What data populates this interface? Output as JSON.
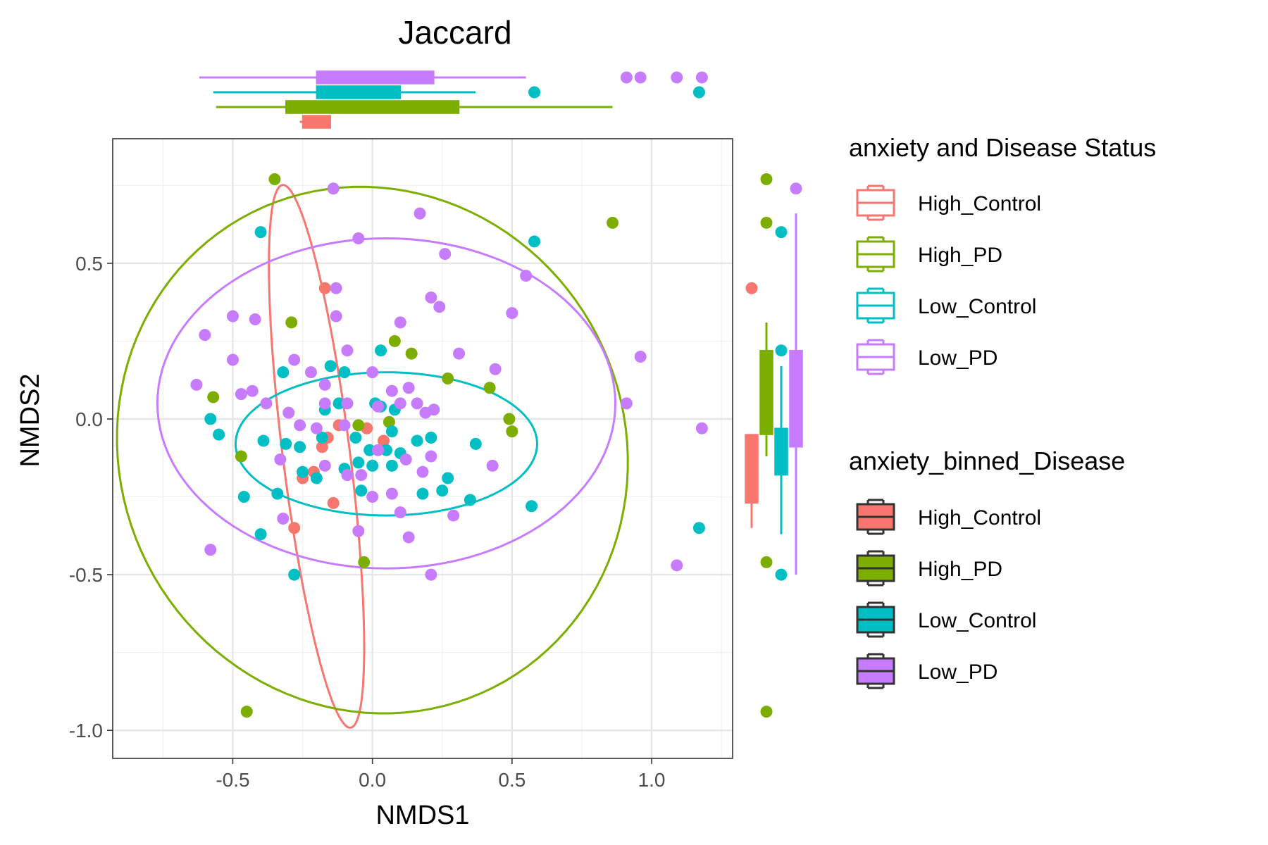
{
  "chart_data": {
    "type": "scatter",
    "title": "Jaccard",
    "xlabel": "NMDS1",
    "ylabel": "NMDS2",
    "xlim": [
      -0.93,
      1.29
    ],
    "ylim": [
      -1.09,
      0.9
    ],
    "x_ticks": [
      -0.5,
      0.0,
      0.5,
      1.0
    ],
    "x_tick_labels": [
      "-0.5",
      "0.0",
      "0.5",
      "1.0"
    ],
    "y_ticks": [
      -1.0,
      -0.5,
      0.0,
      0.5
    ],
    "y_tick_labels": [
      "-1.0",
      "-0.5",
      "0.0",
      "0.5"
    ],
    "grid": true,
    "legend_position": "right",
    "legend_titles": [
      "anxiety and Disease Status",
      "anxiety_binned_Disease"
    ],
    "series": [
      {
        "name": "High_Control",
        "color": "#F8766D",
        "points": [
          [
            -0.17,
            0.42
          ],
          [
            -0.12,
            -0.02
          ],
          [
            -0.16,
            -0.06
          ],
          [
            -0.25,
            -0.19
          ],
          [
            -0.28,
            -0.35
          ],
          [
            -0.14,
            -0.27
          ],
          [
            -0.02,
            -0.03
          ],
          [
            0.04,
            -0.07
          ],
          [
            -0.21,
            -0.17
          ],
          [
            -0.18,
            -0.09
          ]
        ],
        "ellipse": {
          "center": [
            -0.2,
            -0.12
          ],
          "rx": 0.12,
          "ry": 0.88,
          "angle_deg": 8
        },
        "box_x": {
          "min": -0.26,
          "q1": -0.25,
          "median": -0.2,
          "q3": -0.15,
          "max": -0.15
        },
        "box_y": {
          "min": -0.35,
          "q1": -0.27,
          "median": -0.15,
          "q3": -0.05,
          "max": -0.05,
          "outliers": [
            0.42
          ]
        }
      },
      {
        "name": "High_PD",
        "color": "#7CAE00",
        "points": [
          [
            -0.35,
            0.77
          ],
          [
            0.86,
            0.63
          ],
          [
            -0.29,
            0.31
          ],
          [
            0.08,
            0.25
          ],
          [
            0.14,
            0.21
          ],
          [
            -0.57,
            0.07
          ],
          [
            0.27,
            0.13
          ],
          [
            0.42,
            0.1
          ],
          [
            0.49,
            0.0
          ],
          [
            0.5,
            -0.04
          ],
          [
            -0.05,
            -0.02
          ],
          [
            0.06,
            -0.01
          ],
          [
            -0.47,
            -0.12
          ],
          [
            -0.03,
            -0.46
          ],
          [
            -0.45,
            -0.94
          ]
        ],
        "ellipse": {
          "center": [
            0.0,
            -0.1
          ],
          "rx": 0.92,
          "ry": 0.84,
          "angle_deg": -15
        },
        "box_x": {
          "min": -0.56,
          "q1": -0.31,
          "median": -0.02,
          "q3": 0.31,
          "max": 0.86,
          "outliers": []
        },
        "box_y": {
          "min": -0.12,
          "q1": -0.05,
          "median": 0.08,
          "q3": 0.22,
          "max": 0.31,
          "outliers": [
            0.77,
            0.63,
            -0.46,
            -0.94
          ]
        }
      },
      {
        "name": "Low_Control",
        "color": "#00BFC4",
        "points": [
          [
            -0.4,
            0.6
          ],
          [
            -0.32,
            0.15
          ],
          [
            -0.15,
            0.17
          ],
          [
            -0.1,
            0.15
          ],
          [
            0.03,
            0.22
          ],
          [
            -0.17,
            0.03
          ],
          [
            -0.12,
            0.05
          ],
          [
            0.01,
            0.05
          ],
          [
            0.03,
            0.04
          ],
          [
            0.08,
            0.03
          ],
          [
            -0.58,
            0.0
          ],
          [
            -0.55,
            -0.05
          ],
          [
            -0.39,
            -0.07
          ],
          [
            -0.31,
            -0.08
          ],
          [
            -0.26,
            -0.09
          ],
          [
            -0.18,
            -0.06
          ],
          [
            -0.06,
            -0.06
          ],
          [
            -0.01,
            -0.1
          ],
          [
            0.05,
            -0.1
          ],
          [
            0.1,
            -0.11
          ],
          [
            0.16,
            -0.07
          ],
          [
            0.21,
            -0.06
          ],
          [
            0.07,
            -0.04
          ],
          [
            0.37,
            -0.08
          ],
          [
            -0.46,
            -0.25
          ],
          [
            -0.34,
            -0.24
          ],
          [
            -0.4,
            -0.37
          ],
          [
            -0.25,
            -0.17
          ],
          [
            -0.2,
            -0.19
          ],
          [
            -0.1,
            -0.16
          ],
          [
            -0.05,
            -0.14
          ],
          [
            0.0,
            -0.15
          ],
          [
            0.07,
            -0.15
          ],
          [
            -0.04,
            -0.23
          ],
          [
            0.18,
            -0.24
          ],
          [
            0.25,
            -0.23
          ],
          [
            0.27,
            -0.19
          ],
          [
            0.35,
            -0.26
          ],
          [
            0.57,
            -0.28
          ],
          [
            -0.28,
            -0.5
          ],
          [
            1.17,
            -0.35
          ],
          [
            0.58,
            0.57
          ]
        ],
        "ellipse": {
          "center": [
            0.05,
            -0.08
          ],
          "rx": 0.54,
          "ry": 0.23,
          "angle_deg": 0
        },
        "box_x": {
          "min": -0.57,
          "q1": -0.2,
          "median": -0.06,
          "q3": 0.1,
          "max": 0.37,
          "outliers": [
            0.58,
            1.17
          ]
        },
        "box_y": {
          "min": -0.37,
          "q1": -0.18,
          "median": -0.09,
          "q3": -0.03,
          "max": 0.17,
          "outliers": [
            0.6,
            0.22,
            -0.5
          ]
        }
      },
      {
        "name": "Low_PD",
        "color": "#C77CFF",
        "points": [
          [
            -0.14,
            0.74
          ],
          [
            0.17,
            0.66
          ],
          [
            -0.05,
            0.58
          ],
          [
            0.26,
            0.53
          ],
          [
            0.55,
            0.46
          ],
          [
            -0.13,
            0.42
          ],
          [
            0.21,
            0.39
          ],
          [
            0.24,
            0.36
          ],
          [
            0.5,
            0.34
          ],
          [
            -0.5,
            0.33
          ],
          [
            -0.42,
            0.32
          ],
          [
            -0.13,
            0.33
          ],
          [
            0.1,
            0.31
          ],
          [
            -0.6,
            0.27
          ],
          [
            -0.5,
            0.19
          ],
          [
            -0.09,
            0.22
          ],
          [
            -0.28,
            0.19
          ],
          [
            0.31,
            0.21
          ],
          [
            0.44,
            0.16
          ],
          [
            0.96,
            0.2
          ],
          [
            -0.63,
            0.11
          ],
          [
            -0.47,
            0.08
          ],
          [
            -0.43,
            0.09
          ],
          [
            -0.22,
            0.15
          ],
          [
            0.0,
            0.15
          ],
          [
            -0.17,
            0.11
          ],
          [
            0.07,
            0.09
          ],
          [
            0.13,
            0.1
          ],
          [
            -0.17,
            0.05
          ],
          [
            -0.09,
            0.05
          ],
          [
            -0.38,
            0.05
          ],
          [
            0.02,
            0.04
          ],
          [
            0.1,
            0.05
          ],
          [
            -0.3,
            0.02
          ],
          [
            0.16,
            0.05
          ],
          [
            0.19,
            0.02
          ],
          [
            -0.26,
            -0.02
          ],
          [
            0.22,
            0.03
          ],
          [
            -0.2,
            -0.03
          ],
          [
            -0.1,
            -0.02
          ],
          [
            -0.33,
            -0.13
          ],
          [
            -0.17,
            -0.15
          ],
          [
            -0.09,
            -0.18
          ],
          [
            -0.04,
            -0.18
          ],
          [
            0.02,
            -0.1
          ],
          [
            0.12,
            -0.13
          ],
          [
            0.21,
            -0.12
          ],
          [
            0.18,
            -0.17
          ],
          [
            0.43,
            -0.15
          ],
          [
            0.91,
            0.05
          ],
          [
            1.18,
            -0.03
          ],
          [
            -0.32,
            -0.32
          ],
          [
            0.0,
            -0.25
          ],
          [
            0.07,
            -0.24
          ],
          [
            0.1,
            -0.3
          ],
          [
            0.29,
            -0.31
          ],
          [
            -0.58,
            -0.42
          ],
          [
            -0.05,
            -0.36
          ],
          [
            0.13,
            -0.38
          ],
          [
            0.21,
            -0.5
          ],
          [
            1.09,
            -0.47
          ]
        ],
        "ellipse": {
          "center": [
            0.05,
            0.05
          ],
          "rx": 0.82,
          "ry": 0.53,
          "angle_deg": 0
        },
        "box_x": {
          "min": -0.62,
          "q1": -0.2,
          "median": 0.02,
          "q3": 0.22,
          "max": 0.55,
          "outliers": [
            0.91,
            0.96,
            1.09,
            1.18
          ]
        },
        "box_y": {
          "min": -0.5,
          "q1": -0.09,
          "median": 0.04,
          "q3": 0.22,
          "max": 0.66,
          "outliers": [
            0.74
          ]
        }
      }
    ]
  }
}
